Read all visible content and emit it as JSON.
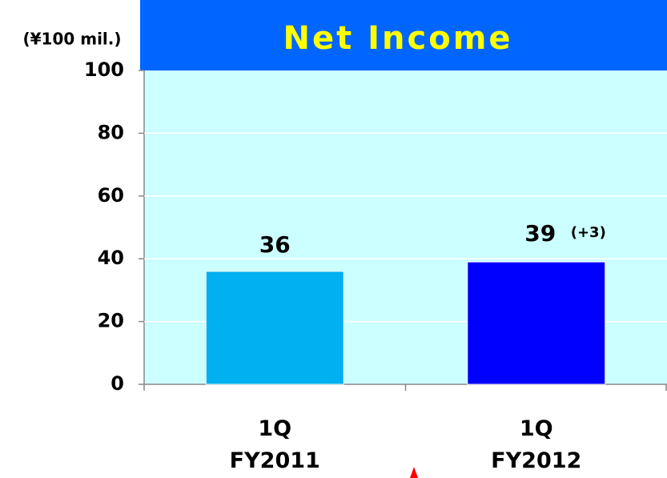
{
  "chart_data": {
    "type": "bar",
    "title": "Net Income",
    "unit_label": "(¥100 mil.)",
    "categories": [
      "1Q\nFY2011",
      "1Q\nFY2012"
    ],
    "values": [
      36,
      39
    ],
    "colors": [
      "#00b0f0",
      "#0000ff"
    ],
    "annotation": "(+3)",
    "ylim": [
      0,
      100
    ],
    "yticks": [
      0,
      20,
      40,
      60,
      80,
      100
    ],
    "grid": true
  }
}
